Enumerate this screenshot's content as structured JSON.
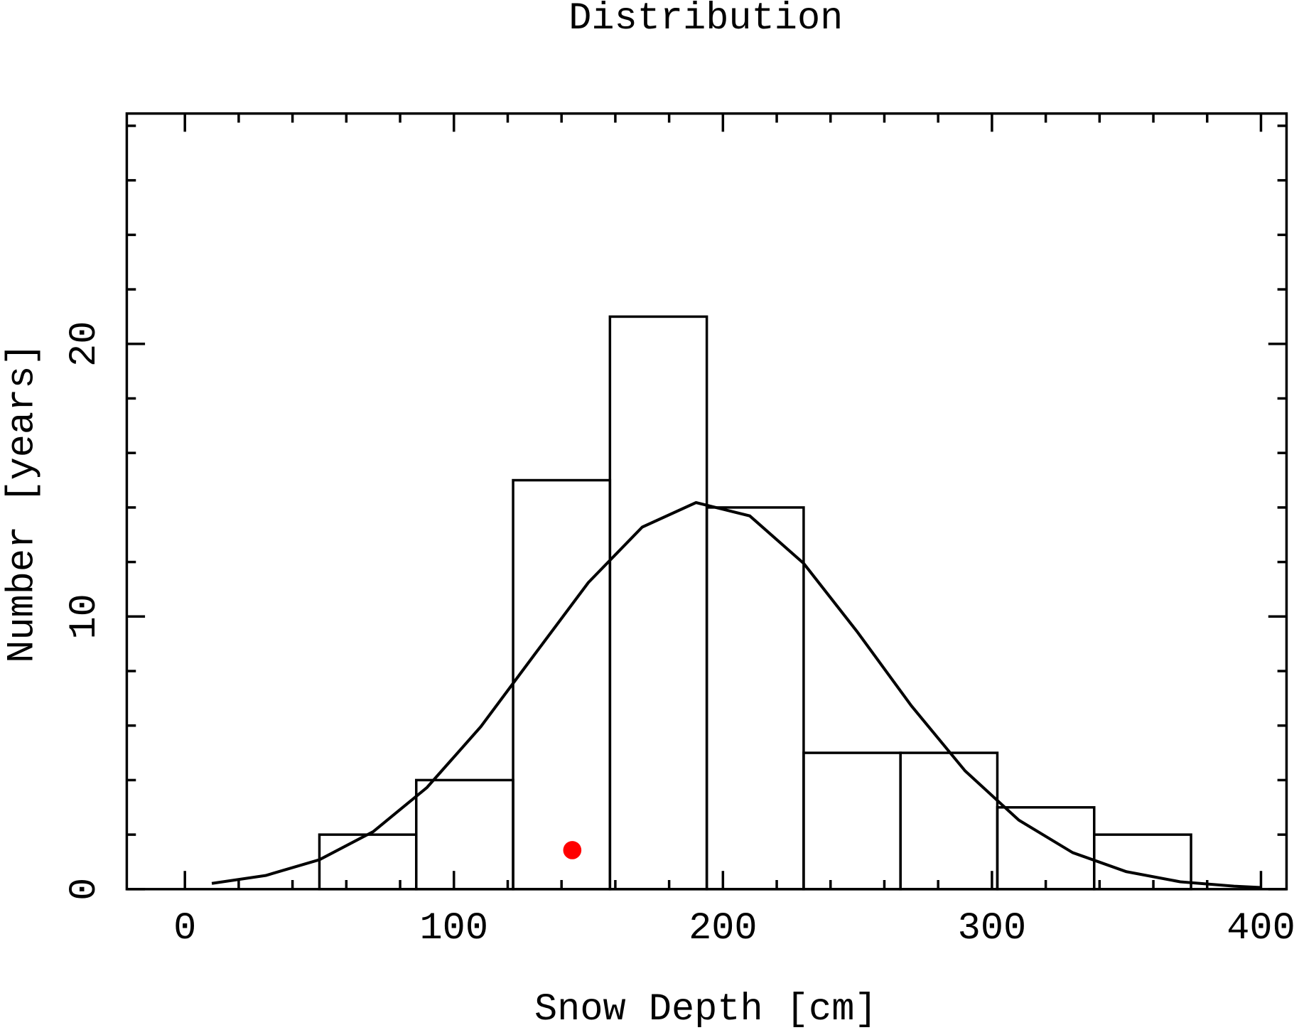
{
  "chart_data": {
    "type": "histogram",
    "title": "Distribution",
    "x_label": "Snow Depth [cm]",
    "y_label": "Number [years]",
    "bins": [
      50,
      86,
      122,
      158,
      194,
      230,
      266,
      302,
      338,
      374
    ],
    "values": [
      2,
      4,
      15,
      21,
      14,
      5,
      5,
      3,
      2
    ],
    "color": "#000000",
    "curve": {
      "x": [
        10,
        30,
        50,
        70,
        90,
        110,
        130,
        150,
        170,
        190,
        210,
        230,
        250,
        270,
        290,
        310,
        330,
        350,
        370,
        390,
        400
      ],
      "values": [
        0.21,
        0.5,
        1.08,
        2.11,
        3.73,
        5.96,
        8.61,
        11.25,
        13.28,
        14.18,
        13.69,
        11.95,
        9.43,
        6.73,
        4.34,
        2.53,
        1.34,
        0.64,
        0.27,
        0.11,
        0.06
      ],
      "color": "#000000"
    },
    "points": {
      "x": [
        144
      ],
      "values": [
        1.43
      ],
      "color": "#ff0000"
    },
    "xlim": [
      -21.6,
      409.5
    ],
    "ylim": [
      0,
      28.45
    ],
    "xticks": [
      0,
      100,
      200,
      300,
      400
    ],
    "xminorticks": [
      20,
      40,
      60,
      80,
      120,
      140,
      160,
      180,
      220,
      240,
      260,
      280,
      320,
      340,
      360,
      380
    ],
    "yticks": [
      0,
      10,
      20
    ],
    "yminorticks": [
      2,
      4,
      6,
      8,
      12,
      14,
      16,
      18,
      22,
      24,
      26,
      28
    ],
    "grid": false
  }
}
